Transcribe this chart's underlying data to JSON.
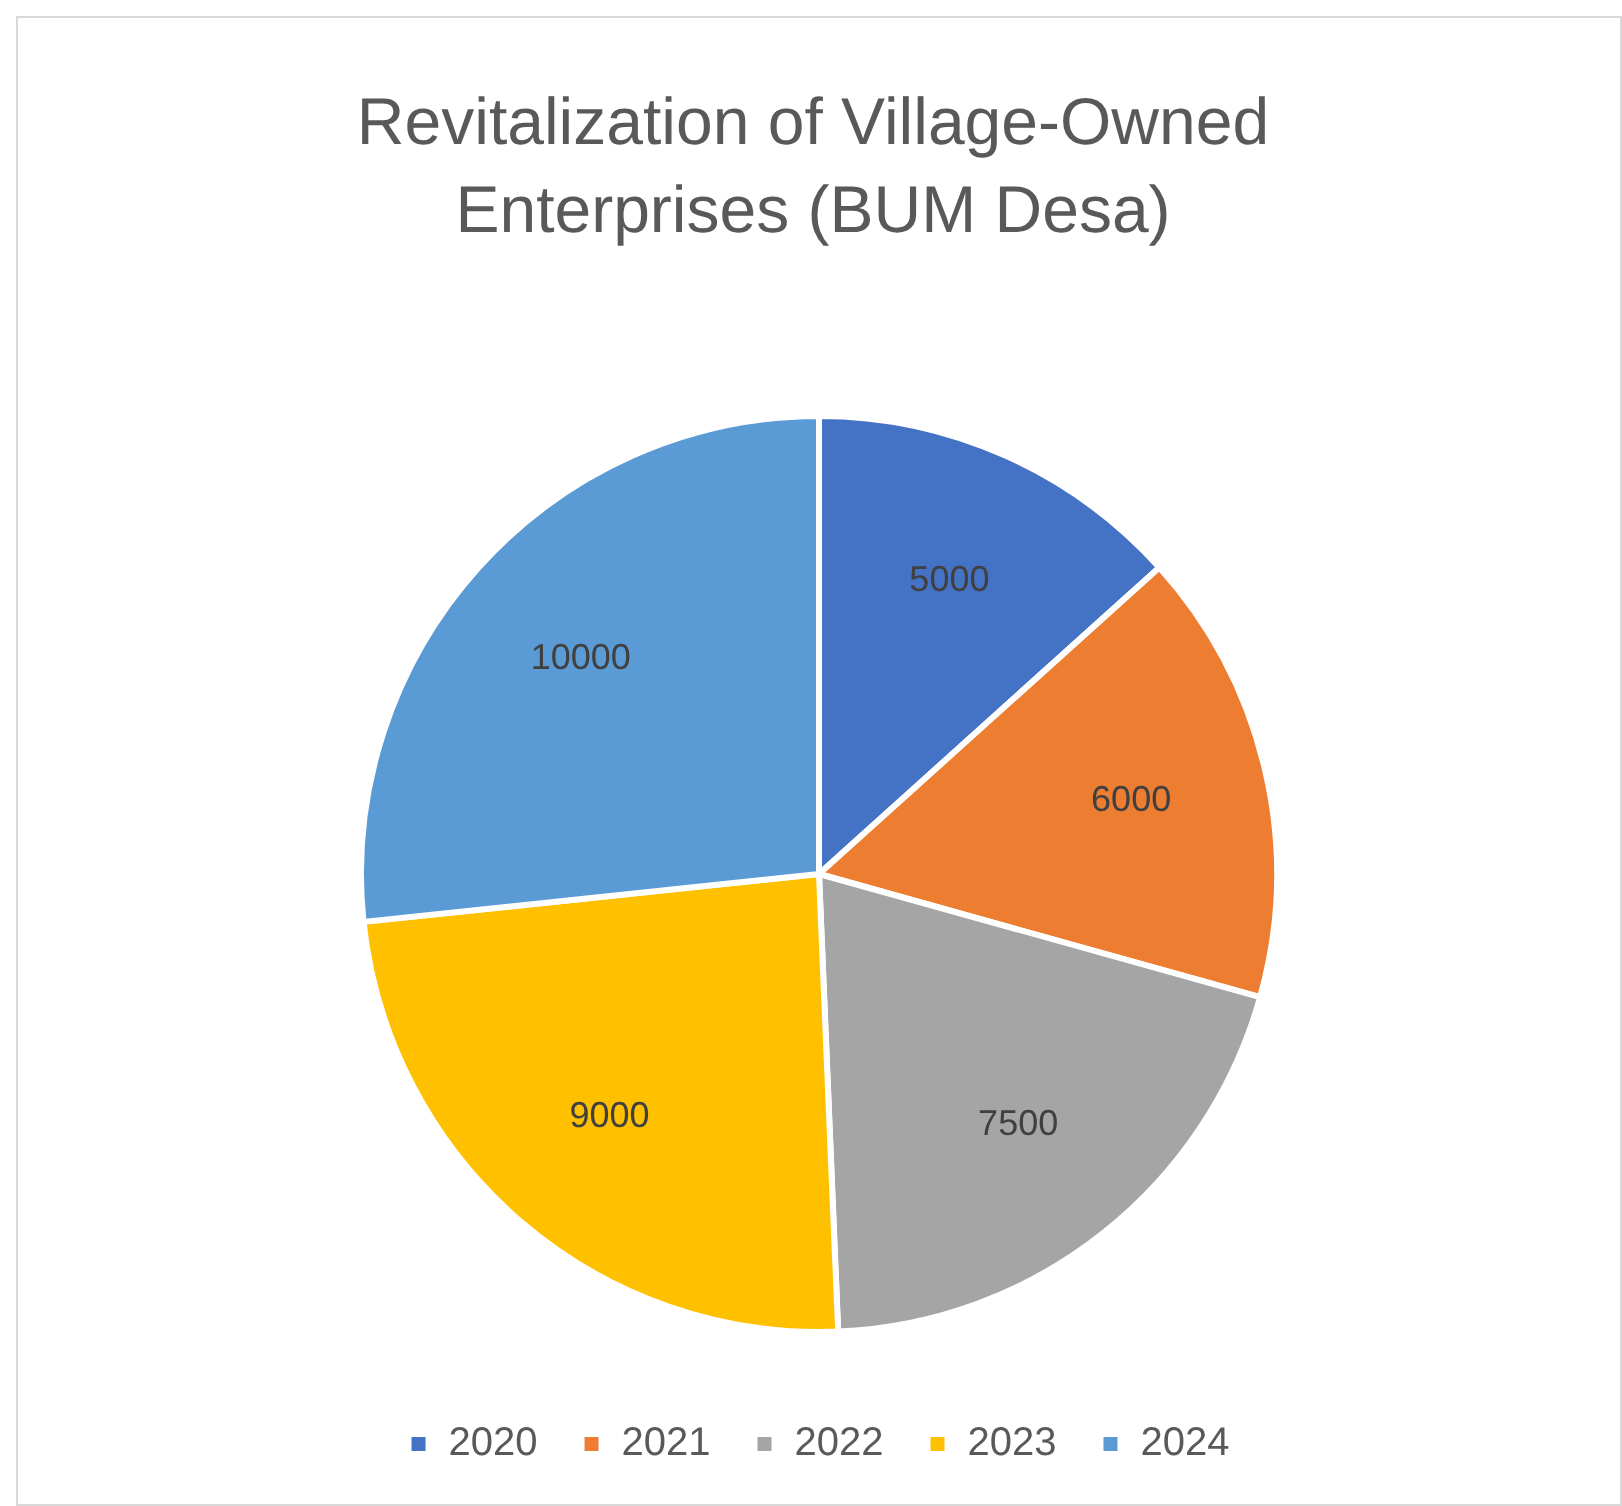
{
  "chart_data": {
    "type": "pie",
    "title": "Revitalization of Village-Owned Enterprises (BUM Desa)",
    "categories": [
      "2020",
      "2021",
      "2022",
      "2023",
      "2024"
    ],
    "values": [
      5000,
      6000,
      7500,
      9000,
      10000
    ],
    "colors": [
      "#4472c4",
      "#ed7d31",
      "#a5a5a5",
      "#ffc000",
      "#5b9bd5"
    ],
    "data_labels": true,
    "legend": "bottom"
  }
}
